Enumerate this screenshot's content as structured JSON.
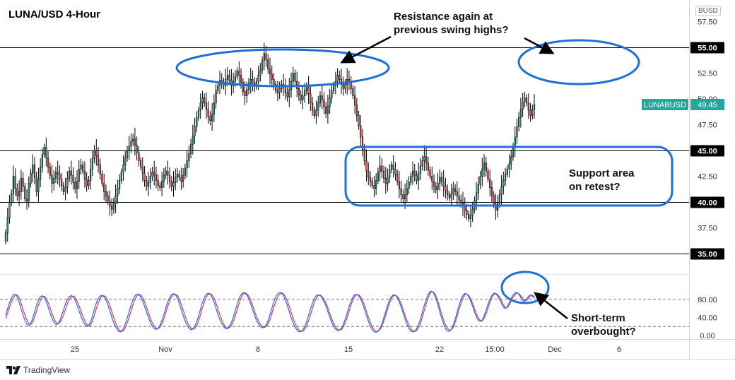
{
  "chart_title": "LUNA/USD 4-Hour",
  "currency_badge": "BUSD",
  "brand": {
    "name": "TradingView"
  },
  "annotations": {
    "resistance": [
      "Resistance again at",
      "previous swing highs?"
    ],
    "support": [
      "Support area",
      "on retest?"
    ],
    "overbought": [
      "Short-term",
      "overbought?"
    ]
  },
  "colors": {
    "candle_up": "#26a69a",
    "candle_down": "#ef5350",
    "candle_body": "#000000",
    "ellipse": "#1e6fd9",
    "stoch_k": "#2962ff",
    "stoch_d": "#e53935",
    "ticker_label": "#26a69a"
  },
  "chart_data": {
    "type": "candlestick",
    "symbol": "LUNABUSD",
    "last_price": "49.45",
    "last_value": 49.45,
    "price_axis": {
      "range": [
        35.0,
        57.5
      ],
      "tick_labels": [
        "57.50",
        "52.50",
        "50.00",
        "47.50",
        "42.50",
        "37.50"
      ]
    },
    "horizontal_levels": [
      {
        "value": 55.0,
        "label": "55.00"
      },
      {
        "value": 45.0,
        "label": "45.00"
      },
      {
        "value": 40.0,
        "label": "40.00"
      },
      {
        "value": 35.0,
        "label": "35.00"
      }
    ],
    "time_axis_labels": [
      "25",
      "Nov",
      "8",
      "15",
      "22",
      "15:00",
      "Dec",
      "6"
    ],
    "ohlc_close": [
      37.0,
      38.5,
      40.0,
      40.8,
      42.5,
      41.3,
      40.6,
      41.0,
      42.3,
      41.5,
      40.3,
      40.1,
      41.8,
      42.8,
      43.6,
      42.4,
      41.0,
      42.2,
      43.4,
      44.6,
      45.3,
      44.3,
      43.4,
      42.6,
      41.8,
      42.3,
      42.9,
      42.7,
      42.2,
      41.6,
      41.0,
      41.4,
      42.3,
      43.0,
      42.6,
      41.9,
      41.3,
      42.0,
      43.2,
      43.6,
      43.0,
      42.2,
      41.6,
      42.1,
      43.2,
      44.2,
      45.0,
      44.5,
      43.6,
      42.7,
      41.8,
      41.0,
      40.6,
      40.1,
      39.6,
      39.3,
      39.9,
      40.6,
      41.3,
      42.1,
      42.9,
      43.6,
      44.3,
      45.0,
      45.4,
      45.9,
      46.1,
      45.5,
      44.8,
      44.0,
      43.4,
      42.8,
      42.1,
      41.5,
      41.9,
      42.5,
      42.9,
      42.6,
      42.1,
      41.6,
      41.4,
      42.0,
      42.6,
      43.0,
      42.6,
      42.0,
      41.5,
      41.9,
      42.4,
      42.7,
      42.4,
      42.0,
      42.6,
      43.3,
      44.0,
      44.7,
      45.6,
      46.4,
      47.3,
      48.2,
      48.9,
      49.6,
      50.1,
      49.6,
      49.0,
      48.3,
      47.9,
      48.5,
      49.6,
      50.8,
      51.3,
      51.8,
      51.6,
      51.3,
      51.9,
      52.3,
      51.8,
      51.3,
      51.7,
      52.2,
      52.7,
      52.3,
      51.6,
      50.7,
      50.3,
      50.9,
      51.5,
      51.9,
      51.5,
      51.2,
      51.7,
      52.3,
      52.8,
      53.7,
      54.4,
      53.8,
      52.9,
      52.4,
      51.9,
      51.4,
      50.8,
      50.6,
      51.0,
      51.4,
      51.2,
      50.6,
      50.2,
      50.9,
      51.7,
      52.5,
      51.7,
      51.0,
      50.4,
      49.9,
      50.3,
      50.8,
      51.1,
      50.5,
      49.6,
      48.9,
      48.4,
      48.9,
      49.6,
      50.3,
      49.9,
      49.2,
      48.6,
      49.3,
      50.1,
      50.8,
      51.3,
      51.7,
      52.3,
      51.9,
      51.4,
      51.0,
      51.4,
      51.9,
      51.6,
      51.0,
      50.3,
      49.4,
      48.4,
      47.4,
      46.3,
      45.1,
      44.0,
      43.0,
      42.4,
      42.0,
      41.6,
      41.3,
      42.1,
      42.9,
      43.5,
      43.0,
      42.3,
      41.8,
      42.4,
      43.1,
      43.6,
      43.2,
      42.7,
      42.0,
      41.3,
      40.7,
      40.3,
      40.7,
      41.3,
      41.9,
      42.5,
      43.0,
      42.6,
      42.1,
      42.8,
      43.5,
      44.0,
      44.4,
      43.8,
      43.1,
      42.5,
      42.0,
      41.5,
      41.2,
      41.8,
      42.4,
      42.0,
      41.5,
      41.1,
      40.7,
      40.4,
      40.8,
      41.3,
      41.0,
      40.6,
      40.2,
      39.9,
      39.6,
      39.2,
      38.8,
      38.4,
      38.7,
      39.3,
      40.1,
      40.9,
      41.7,
      42.5,
      43.2,
      43.8,
      43.0,
      42.2,
      41.4,
      40.6,
      39.8,
      39.2,
      39.9,
      40.7,
      41.5,
      42.1,
      42.7,
      43.2,
      43.7,
      44.4,
      45.3,
      46.3,
      47.3,
      48.2,
      49.0,
      49.7,
      50.1,
      49.6,
      48.9,
      48.4,
      49.0,
      49.45
    ],
    "indicator": {
      "name": "Stochastic",
      "range": [
        0,
        100
      ],
      "tick_labels": [
        "80.00",
        "40.00",
        "0.00"
      ],
      "levels": [
        80,
        20
      ],
      "k_values": [
        45,
        58,
        70,
        80,
        88,
        92,
        90,
        82,
        70,
        57,
        45,
        34,
        26,
        22,
        24,
        32,
        44,
        57,
        70,
        80,
        86,
        88,
        85,
        78,
        68,
        56,
        45,
        35,
        28,
        24,
        26,
        32,
        42,
        54,
        66,
        76,
        83,
        87,
        88,
        85,
        78,
        68,
        57,
        46,
        36,
        28,
        22,
        20,
        24,
        32,
        44,
        58,
        70,
        80,
        86,
        89,
        88,
        84,
        76,
        65,
        53,
        41,
        30,
        21,
        14,
        9,
        8,
        11,
        18,
        28,
        40,
        53,
        66,
        77,
        86,
        91,
        92,
        89,
        83,
        74,
        63,
        52,
        41,
        31,
        23,
        17,
        14,
        14,
        18,
        25,
        35,
        47,
        60,
        72,
        82,
        89,
        92,
        92,
        88,
        80,
        69,
        57,
        45,
        34,
        25,
        18,
        14,
        13,
        16,
        22,
        32,
        44,
        58,
        71,
        82,
        89,
        93,
        93,
        89,
        82,
        72,
        60,
        48,
        37,
        28,
        21,
        17,
        15,
        17,
        22,
        31,
        42,
        55,
        68,
        80,
        88,
        93,
        95,
        93,
        88,
        80,
        69,
        57,
        46,
        36,
        28,
        22,
        18,
        17,
        19,
        25,
        34,
        46,
        59,
        72,
        83,
        90,
        94,
        95,
        92,
        86,
        77,
        66,
        54,
        42,
        31,
        22,
        15,
        10,
        8,
        9,
        13,
        20,
        30,
        42,
        55,
        67,
        77,
        85,
        89,
        90,
        88,
        83,
        76,
        67,
        56,
        45,
        34,
        25,
        18,
        13,
        11,
        12,
        16,
        23,
        33,
        45,
        58,
        70,
        80,
        87,
        91,
        91,
        88,
        82,
        73,
        62,
        50,
        38,
        27,
        18,
        12,
        8,
        7,
        9,
        14,
        22,
        33,
        46,
        59,
        71,
        81,
        87,
        90,
        89,
        85,
        78,
        68,
        56,
        44,
        33,
        23,
        15,
        10,
        8,
        9,
        13,
        20,
        30,
        43,
        57,
        70,
        82,
        91,
        97,
        98,
        94,
        86,
        75,
        62,
        48,
        35,
        24,
        15,
        10,
        9,
        12,
        19,
        30,
        43,
        57,
        70,
        81,
        89,
        93,
        92,
        88,
        80,
        70,
        59,
        48,
        39,
        33,
        31,
        34,
        42,
        53,
        65,
        76,
        85,
        91,
        94,
        92,
        87,
        80,
        72,
        64,
        60,
        62,
        68,
        76,
        84,
        90,
        94,
        95,
        92,
        86,
        79,
        75,
        78,
        83,
        88,
        90,
        87,
        82
      ],
      "d_values": [
        38,
        48,
        60,
        71,
        80,
        87,
        90,
        88,
        81,
        70,
        57,
        46,
        36,
        28,
        24,
        26,
        34,
        45,
        57,
        69,
        78,
        85,
        87,
        84,
        77,
        67,
        56,
        45,
        36,
        29,
        26,
        28,
        34,
        43,
        54,
        65,
        75,
        82,
        86,
        87,
        84,
        77,
        68,
        57,
        46,
        37,
        29,
        23,
        21,
        25,
        33,
        45,
        58,
        70,
        79,
        86,
        88,
        87,
        83,
        75,
        65,
        53,
        41,
        30,
        21,
        14,
        10,
        9,
        12,
        19,
        29,
        40,
        53,
        66,
        77,
        85,
        90,
        91,
        88,
        82,
        73,
        62,
        51,
        40,
        31,
        23,
        18,
        15,
        16,
        20,
        27,
        37,
        49,
        62,
        73,
        83,
        89,
        92,
        91,
        87,
        79,
        68,
        57,
        45,
        34,
        25,
        19,
        15,
        14,
        17,
        23,
        33,
        45,
        59,
        71,
        82,
        89,
        92,
        92,
        88,
        81,
        71,
        60,
        48,
        37,
        28,
        21,
        17,
        16,
        18,
        24,
        32,
        43,
        56,
        68,
        80,
        88,
        93,
        94,
        91,
        86,
        77,
        66,
        55,
        44,
        35,
        28,
        22,
        19,
        18,
        21,
        27,
        36,
        48,
        60,
        72,
        82,
        89,
        93,
        94,
        91,
        85,
        76,
        65,
        53,
        42,
        31,
        22,
        15,
        11,
        9,
        10,
        14,
        21,
        31,
        42,
        55,
        67,
        78,
        85,
        89,
        89,
        86,
        81,
        73,
        64,
        53,
        42,
        32,
        24,
        17,
        13,
        12,
        13,
        18,
        26,
        36,
        48,
        60,
        72,
        81,
        88,
        91,
        90,
        86,
        79,
        70,
        59,
        47,
        36,
        26,
        18,
        12,
        9,
        9,
        12,
        18,
        27,
        38,
        51,
        63,
        74,
        83,
        88,
        89,
        87,
        82,
        74,
        64,
        52,
        41,
        31,
        22,
        15,
        11,
        9,
        10,
        15,
        22,
        33,
        46,
        59,
        72,
        84,
        93,
        97,
        96,
        91,
        82,
        70,
        57,
        44,
        32,
        23,
        16,
        12,
        12,
        16,
        24,
        35,
        48,
        61,
        73,
        83,
        90,
        92,
        90,
        84,
        76,
        66,
        55,
        45,
        37,
        33,
        32,
        37,
        45,
        56,
        68,
        79,
        87,
        92,
        93,
        90,
        85,
        78,
        70,
        63,
        61,
        64,
        71,
        79,
        86,
        91,
        94,
        93,
        89,
        84,
        79,
        77,
        79,
        84,
        88,
        89,
        86
      ]
    }
  }
}
